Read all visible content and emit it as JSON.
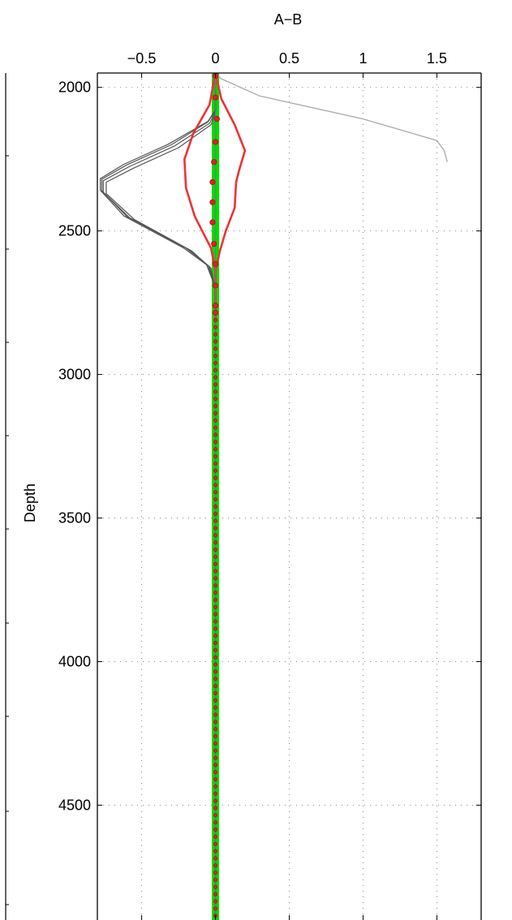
{
  "chart_data": {
    "type": "line",
    "title": "A−B",
    "xlabel": "A−B",
    "ylabel": "Depth",
    "xlim": [
      -0.8,
      1.8
    ],
    "ylim": [
      1950,
      4900
    ],
    "y_reversed": true,
    "x_axis_position": "top",
    "grid": true,
    "x_ticks": [
      -0.5,
      0,
      0.5,
      1,
      1.5
    ],
    "x_tick_labels": [
      "−0.5",
      "0",
      "0.5",
      "1",
      "1.5"
    ],
    "y_ticks": [
      2000,
      2500,
      3000,
      3500,
      4000,
      4500
    ],
    "y_tick_labels": [
      "2000",
      "2500",
      "3000",
      "3500",
      "4000",
      "4500"
    ],
    "colors": {
      "median": "#00dd00",
      "envelope": "#ee3333",
      "points": "#dd2222",
      "ensemble": "#555555",
      "outlier": "#aaaaaa"
    },
    "series": [
      {
        "role": "outlier",
        "x": [
          0.0,
          0.04,
          0.3,
          1.0,
          1.5,
          1.55,
          1.57
        ],
        "y": [
          1950,
          1970,
          2030,
          2110,
          2185,
          2220,
          2260
        ]
      },
      {
        "role": "ensemble",
        "x": [
          0.0,
          0.0,
          -0.05,
          -0.3,
          -0.6,
          -0.77,
          -0.77,
          -0.6,
          -0.2,
          -0.05,
          0.0,
          0.0
        ],
        "y": [
          1950,
          2080,
          2120,
          2200,
          2270,
          2320,
          2360,
          2450,
          2560,
          2620,
          2700,
          4900
        ]
      },
      {
        "role": "ensemble",
        "x": [
          0.0,
          0.0,
          -0.04,
          -0.28,
          -0.58,
          -0.76,
          -0.76,
          -0.58,
          -0.18,
          -0.04,
          0.0,
          0.0
        ],
        "y": [
          1950,
          2085,
          2125,
          2205,
          2275,
          2325,
          2365,
          2455,
          2565,
          2625,
          2705,
          4900
        ]
      },
      {
        "role": "ensemble",
        "x": [
          0.0,
          0.0,
          -0.05,
          -0.32,
          -0.62,
          -0.78,
          -0.78,
          -0.62,
          -0.22,
          -0.06,
          0.0,
          0.0
        ],
        "y": [
          1950,
          2078,
          2118,
          2198,
          2268,
          2318,
          2358,
          2448,
          2558,
          2618,
          2698,
          4900
        ]
      },
      {
        "role": "ensemble",
        "x": [
          0.0,
          0.0,
          -0.03,
          -0.25,
          -0.55,
          -0.74,
          -0.74,
          -0.55,
          -0.16,
          -0.03,
          0.0,
          0.0
        ],
        "y": [
          1950,
          2090,
          2130,
          2210,
          2280,
          2330,
          2370,
          2460,
          2570,
          2630,
          2710,
          4900
        ]
      },
      {
        "role": "envelope-left",
        "x": [
          0.0,
          -0.04,
          -0.15,
          -0.21,
          -0.2,
          -0.14,
          -0.03,
          0.0,
          0.0
        ],
        "y": [
          1950,
          2060,
          2160,
          2250,
          2350,
          2450,
          2560,
          2640,
          2820
        ]
      },
      {
        "role": "envelope-right",
        "x": [
          0.0,
          0.04,
          0.13,
          0.2,
          0.16,
          0.14,
          0.13,
          0.07,
          0.03,
          0.0,
          0.0
        ],
        "y": [
          1950,
          2040,
          2130,
          2220,
          2290,
          2330,
          2420,
          2500,
          2570,
          2640,
          2820
        ]
      }
    ],
    "median": {
      "x": [
        0.0,
        0.0
      ],
      "y": [
        1950,
        4900
      ]
    },
    "points": {
      "x": [
        0.0,
        0.0,
        0.01,
        0.0,
        -0.01,
        -0.02,
        -0.02,
        -0.02,
        -0.01,
        0.0,
        0.0,
        0.0
      ],
      "y": [
        1960,
        2035,
        2110,
        2190,
        2260,
        2330,
        2400,
        2470,
        2545,
        2615,
        2690,
        2760
      ],
      "fill_to_depth": 4890,
      "fill_step": 25
    }
  }
}
